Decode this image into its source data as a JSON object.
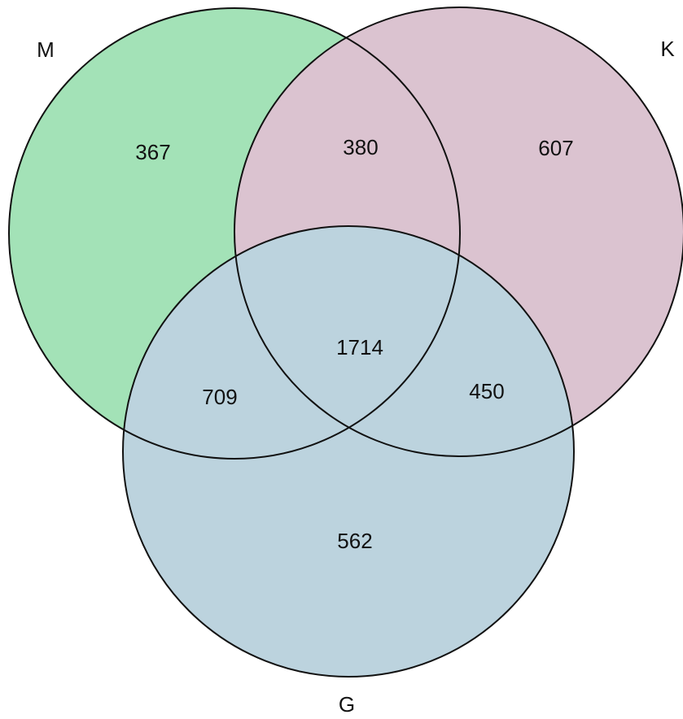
{
  "venn": {
    "sets": [
      {
        "key": "M",
        "label": "M",
        "color": "#a3e2b7"
      },
      {
        "key": "K",
        "label": "K",
        "color": "#dbc3d0"
      },
      {
        "key": "G",
        "label": "G",
        "color": "#bcd3de"
      }
    ],
    "regions": {
      "m_only": "367",
      "m_k": "380",
      "k_only": "607",
      "m_k_g": "1714",
      "m_g": "709",
      "k_g": "450",
      "g_only": "562"
    }
  }
}
